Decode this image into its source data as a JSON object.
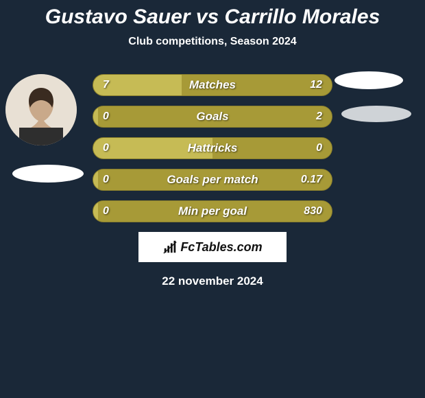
{
  "title": {
    "text": "Gustavo Sauer vs Carrillo Morales",
    "color": "#ffffff",
    "fontsize": 30
  },
  "subtitle": {
    "text": "Club competitions, Season 2024",
    "color": "#ffffff",
    "fontsize": 16
  },
  "colors": {
    "background": "#1a2838",
    "bar_track": "#a79a37",
    "bar_fill": "#c6bb55",
    "bar_border": "#8a7f2c",
    "text_white": "#ffffff"
  },
  "bar_style": {
    "height": 32,
    "radius": 16,
    "label_fontsize": 17,
    "value_fontsize": 16
  },
  "rows": [
    {
      "label": "Matches",
      "left_val": "7",
      "right_val": "12",
      "left_pct": 37,
      "right_pct": 63
    },
    {
      "label": "Goals",
      "left_val": "0",
      "right_val": "2",
      "left_pct": 2,
      "right_pct": 98
    },
    {
      "label": "Hattricks",
      "left_val": "0",
      "right_val": "0",
      "left_pct": 50,
      "right_pct": 50
    },
    {
      "label": "Goals per match",
      "left_val": "0",
      "right_val": "0.17",
      "left_pct": 2,
      "right_pct": 98
    },
    {
      "label": "Min per goal",
      "left_val": "0",
      "right_val": "830",
      "left_pct": 2,
      "right_pct": 98
    }
  ],
  "logo": {
    "text": "FcTables.com",
    "icon_color": "#111111"
  },
  "date": {
    "text": "22 november 2024",
    "color": "#ffffff",
    "fontsize": 17
  }
}
